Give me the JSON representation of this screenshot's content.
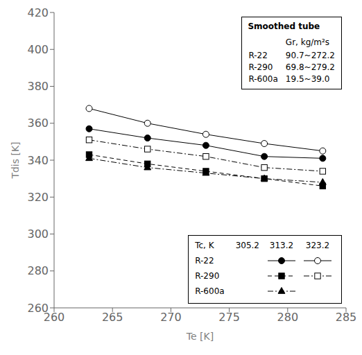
{
  "chart_data": {
    "type": "line",
    "title": "Smoothed tube",
    "x_label": "Te [K]",
    "y_label": "Tdis [K]",
    "xlim": [
      260,
      285
    ],
    "ylim": [
      260,
      420
    ],
    "xticks": [
      260,
      265,
      270,
      275,
      280,
      285
    ],
    "yticks": [
      260,
      280,
      300,
      320,
      340,
      360,
      380,
      400,
      420
    ],
    "grid": false,
    "x": [
      263,
      268,
      273,
      278,
      283
    ],
    "series": [
      {
        "name": "R-22",
        "tc": 323.2,
        "color": "black",
        "marker": "open circle",
        "line_style": "solid",
        "values": [
          368,
          360,
          354,
          349,
          345
        ]
      },
      {
        "name": "R-22",
        "tc": 313.2,
        "color": "black",
        "marker": "filled circle",
        "line_style": "solid",
        "values": [
          357,
          352,
          348,
          342,
          341
        ]
      },
      {
        "name": "R-290",
        "tc": 323.2,
        "color": "black",
        "marker": "open square",
        "line_style": "dashdot",
        "values": [
          351,
          346,
          342,
          336,
          334
        ]
      },
      {
        "name": "R-290",
        "tc": 313.2,
        "color": "black",
        "marker": "filled square",
        "line_style": "dashed",
        "values": [
          343,
          338,
          334,
          330,
          326
        ]
      },
      {
        "name": "R-600a",
        "tc": 313.2,
        "color": "black",
        "marker": "filled triangle",
        "line_style": "dashdot",
        "values": [
          341,
          336,
          333,
          330,
          328
        ]
      }
    ],
    "annotations": {
      "info_header": "Gr, kg/m²s",
      "info_rows": [
        [
          "R-22",
          "90.7~272.2"
        ],
        [
          "R-290",
          "69.8~279.2"
        ],
        [
          "R-600a",
          "19.5~39.0"
        ]
      ],
      "table_header": "Tc, K",
      "table_columns": [
        305.2,
        313.2,
        323.2
      ]
    }
  }
}
